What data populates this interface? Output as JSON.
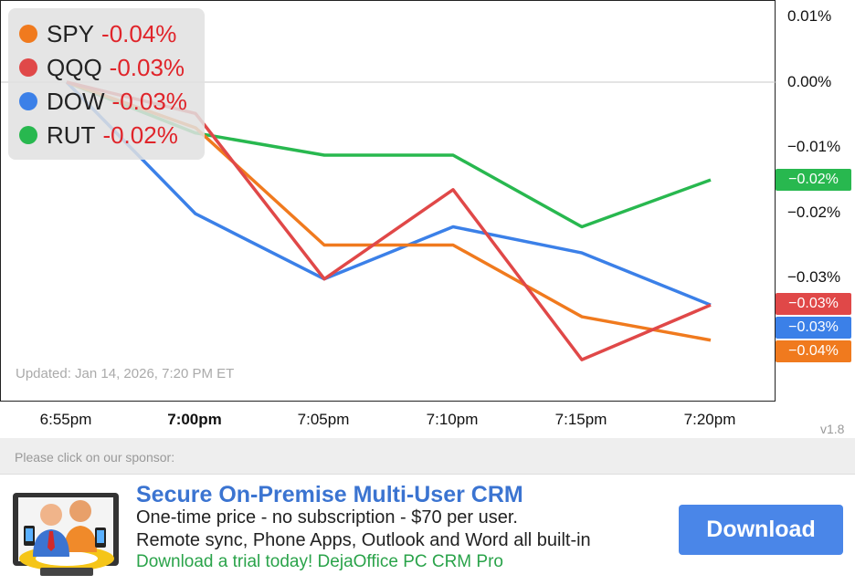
{
  "chart_data": {
    "type": "line",
    "categories": [
      "6:55pm",
      "7:00pm",
      "7:05pm",
      "7:10pm",
      "7:15pm",
      "7:20pm"
    ],
    "bold_category": "7:00pm",
    "y_ticks": [
      "0.01%",
      "0.00%",
      "−0.01%",
      "−0.02%",
      "−0.03%"
    ],
    "ylim": [
      -0.0426,
      0.0102
    ],
    "series": [
      {
        "name": "SPY",
        "color": "#f07a1e",
        "change": "-0.04%",
        "badge": "−0.04%",
        "values": [
          0.0,
          -0.007,
          -0.025,
          -0.025,
          -0.036,
          -0.0396
        ]
      },
      {
        "name": "QQQ",
        "color": "#e04848",
        "change": "-0.03%",
        "badge": "−0.03%",
        "values": [
          0.0,
          -0.0048,
          -0.0302,
          -0.0165,
          -0.0426,
          -0.0342
        ]
      },
      {
        "name": "DOW",
        "color": "#3b80e8",
        "change": "-0.03%",
        "badge": "−0.03%",
        "values": [
          0.0,
          -0.0202,
          -0.0302,
          -0.0222,
          -0.0262,
          -0.0342
        ]
      },
      {
        "name": "RUT",
        "color": "#28b84f",
        "change": "-0.02%",
        "badge": "−0.02%",
        "values": [
          0.0,
          -0.0078,
          -0.0112,
          -0.0112,
          -0.0222,
          -0.015
        ]
      }
    ],
    "grid": false,
    "legend": "top-left",
    "updated": "Updated: Jan 14, 2026, 7:20 PM ET"
  },
  "version": "v1.8",
  "sponsor": {
    "label": "Please click on our sponsor:",
    "title": "Secure On-Premise Multi-User CRM",
    "line1": "One-time price - no subscription - $70 per user.",
    "line2": "Remote sync, Phone Apps, Outlook and Word all built-in",
    "cta_text": "Download a trial today! DejaOffice PC CRM Pro",
    "button": "Download"
  }
}
